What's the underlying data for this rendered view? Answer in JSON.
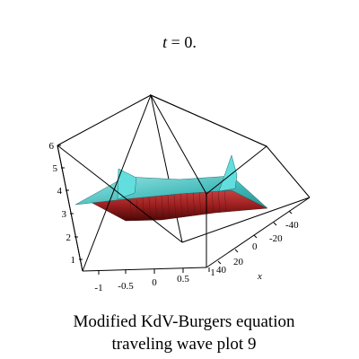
{
  "chart_data": {
    "type": "surface3d",
    "time_label": {
      "var": "t",
      "eq": " = ",
      "val": "0."
    },
    "caption": [
      "Modified KdV-Burgers  equation",
      "traveling wave plot 9"
    ],
    "axes": {
      "x": {
        "label": "x",
        "ticks": [
          "40",
          "20",
          "0",
          "-20",
          "-40"
        ],
        "range": [
          40,
          -40
        ]
      },
      "y": {
        "ticks": [
          "-1",
          "-0.5",
          "0",
          "0.5",
          "1"
        ],
        "range": [
          -1,
          1
        ]
      },
      "z": {
        "ticks": [
          "1",
          "2",
          "3",
          "4",
          "5",
          "6"
        ],
        "range": [
          1,
          6
        ]
      }
    },
    "surface": {
      "base_level": 4,
      "front_face_bottom": 3,
      "peak_level": 5,
      "colors": {
        "top": "#3fb8b8",
        "top_light": "#9ce6e6",
        "front": "#9a1f1f",
        "front_dark": "#5a0a0a",
        "spike": "#63dede"
      }
    }
  }
}
